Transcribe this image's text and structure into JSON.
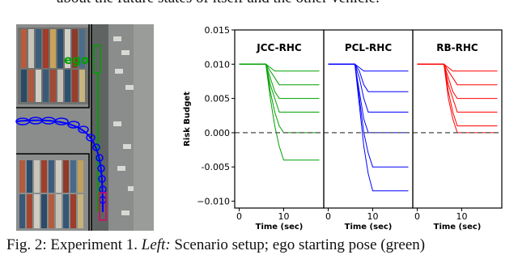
{
  "top_text": "about the future states of itself and the other vehicle.",
  "figure": {
    "ego_label": "ego"
  },
  "chart_data": [
    {
      "type": "line",
      "title": "JCC-RHC",
      "ylabel": "Risk Budget",
      "xlabel": "Time (sec)",
      "x": [
        0,
        6,
        7,
        8,
        9,
        10,
        18
      ],
      "xlim": [
        -1,
        19
      ],
      "xticks": [
        0,
        10
      ],
      "ylim": [
        -0.011,
        0.015
      ],
      "yticks": [
        0.015,
        {
          "value": 0.01,
          "label": "0.010"
        },
        0.005,
        {
          "value": 0,
          "label": "0.000"
        },
        -0.005,
        {
          "value": -0.01,
          "label": "−0.010"
        }
      ],
      "hline": 0,
      "series": [
        {
          "color": "#00a000",
          "values": [
            0.01,
            0.01,
            0.0095,
            0.009,
            0.009,
            0.009,
            0.009
          ]
        },
        {
          "color": "#00a000",
          "values": [
            0.01,
            0.01,
            0.009,
            0.008,
            0.007,
            0.007,
            0.007
          ]
        },
        {
          "color": "#00a000",
          "values": [
            0.01,
            0.01,
            0.008,
            0.006,
            0.005,
            0.005,
            0.005
          ]
        },
        {
          "color": "#00a000",
          "values": [
            0.01,
            0.01,
            0.007,
            0.005,
            0.003,
            0.003,
            0.003
          ]
        },
        {
          "color": "#00a000",
          "values": [
            0.01,
            0.01,
            0.006,
            0.003,
            0.001,
            0.0,
            0.0
          ]
        },
        {
          "color": "#00a000",
          "values": [
            0.01,
            0.01,
            0.005,
            0.001,
            -0.002,
            -0.004,
            -0.004
          ]
        }
      ]
    },
    {
      "type": "line",
      "title": "PCL-RHC",
      "xlabel": "Time (sec)",
      "x": [
        0,
        6,
        7,
        8,
        9,
        10,
        18
      ],
      "xlim": [
        -1,
        19
      ],
      "xticks": [
        0,
        10
      ],
      "ylim": [
        -0.011,
        0.015
      ],
      "hline": 0,
      "series": [
        {
          "color": "#0000ff",
          "values": [
            0.01,
            0.01,
            0.0095,
            0.009,
            0.009,
            0.009,
            0.009
          ]
        },
        {
          "color": "#0000ff",
          "values": [
            0.01,
            0.01,
            0.009,
            0.007,
            0.006,
            0.006,
            0.006
          ]
        },
        {
          "color": "#0000ff",
          "values": [
            0.01,
            0.01,
            0.008,
            0.005,
            0.003,
            0.003,
            0.003
          ]
        },
        {
          "color": "#0000ff",
          "values": [
            0.01,
            0.01,
            0.006,
            0.002,
            0.0,
            0.0,
            0.0
          ]
        },
        {
          "color": "#0000ff",
          "values": [
            0.01,
            0.01,
            0.005,
            0.0,
            -0.003,
            -0.005,
            -0.005
          ]
        },
        {
          "color": "#0000ff",
          "values": [
            0.01,
            0.01,
            0.004,
            -0.002,
            -0.006,
            -0.0085,
            -0.0085
          ]
        }
      ]
    },
    {
      "type": "line",
      "title": "RB-RHC",
      "xlabel": "Time (sec)",
      "x": [
        0,
        6,
        7,
        8,
        9,
        10,
        18
      ],
      "xlim": [
        -1,
        19
      ],
      "xticks": [
        0,
        10
      ],
      "ylim": [
        -0.011,
        0.015
      ],
      "hline": 0,
      "series": [
        {
          "color": "#ff0000",
          "values": [
            0.01,
            0.01,
            0.0095,
            0.009,
            0.009,
            0.009,
            0.009
          ]
        },
        {
          "color": "#ff0000",
          "values": [
            0.01,
            0.01,
            0.009,
            0.008,
            0.007,
            0.007,
            0.007
          ]
        },
        {
          "color": "#ff0000",
          "values": [
            0.01,
            0.01,
            0.008,
            0.006,
            0.005,
            0.005,
            0.005
          ]
        },
        {
          "color": "#ff0000",
          "values": [
            0.01,
            0.01,
            0.007,
            0.005,
            0.003,
            0.003,
            0.003
          ]
        },
        {
          "color": "#ff0000",
          "values": [
            0.01,
            0.01,
            0.006,
            0.003,
            0.001,
            0.001,
            0.001
          ]
        },
        {
          "color": "#ff0000",
          "values": [
            0.01,
            0.01,
            0.005,
            0.002,
            0.0,
            0.0,
            0.0
          ]
        }
      ]
    }
  ],
  "caption": {
    "label": "Fig. 2:",
    "text1": " Experiment 1. ",
    "emph": "Left:",
    "text2": " Scenario setup; ego starting pose (green)"
  }
}
